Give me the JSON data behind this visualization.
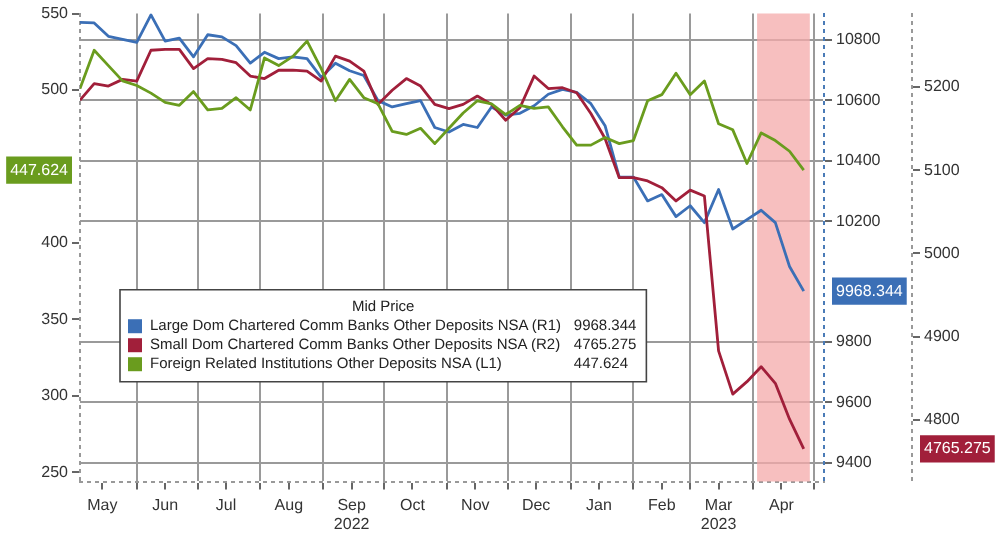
{
  "chart_data": {
    "type": "line",
    "x": [
      "2022-05-04",
      "2022-05-11",
      "2022-05-18",
      "2022-05-25",
      "2022-06-01",
      "2022-06-08",
      "2022-06-15",
      "2022-06-22",
      "2022-06-29",
      "2022-07-06",
      "2022-07-13",
      "2022-07-20",
      "2022-07-27",
      "2022-08-03",
      "2022-08-10",
      "2022-08-17",
      "2022-08-24",
      "2022-08-31",
      "2022-09-07",
      "2022-09-14",
      "2022-09-21",
      "2022-09-28",
      "2022-10-05",
      "2022-10-12",
      "2022-10-19",
      "2022-10-26",
      "2022-11-02",
      "2022-11-09",
      "2022-11-16",
      "2022-11-23",
      "2022-11-30",
      "2022-12-07",
      "2022-12-14",
      "2022-12-21",
      "2022-12-28",
      "2023-01-04",
      "2023-01-11",
      "2023-01-18",
      "2023-01-25",
      "2023-02-01",
      "2023-02-08",
      "2023-02-15",
      "2023-02-22",
      "2023-03-01",
      "2023-03-08",
      "2023-03-15",
      "2023-03-22",
      "2023-03-29",
      "2023-04-05",
      "2023-04-12",
      "2023-04-19",
      "2023-04-26"
    ],
    "series": [
      {
        "name": "Large Dom Chartered Comm Banks Other Deposits NSA (R1) 9968.344",
        "color": "#3b6fb6",
        "axis": "y2",
        "values": [
          10858,
          10856,
          10812,
          10802,
          10792,
          10883,
          10796,
          10806,
          10744,
          10817,
          10810,
          10781,
          10723,
          10759,
          10738,
          10744,
          10738,
          10676,
          10723,
          10698,
          10682,
          10599,
          10578,
          10589,
          10599,
          10510,
          10495,
          10520,
          10510,
          10578,
          10551,
          10557,
          10582,
          10620,
          10636,
          10626,
          10589,
          10516,
          10346,
          10346,
          10267,
          10288,
          10215,
          10251,
          10195,
          10305,
          10174,
          10205,
          10236,
          10195,
          10050,
          9968.344
        ]
      },
      {
        "name": "Small Dom Chartered Comm Banks Other Deposits NSA (R2) 4765.275",
        "color": "#a11f3a",
        "axis": "y3",
        "values": [
          5184,
          5204,
          5201,
          5209,
          5207,
          5244,
          5245,
          5245,
          5222,
          5234,
          5233,
          5229,
          5213,
          5210,
          5220,
          5220,
          5219,
          5207,
          5237,
          5231,
          5219,
          5179,
          5196,
          5210,
          5201,
          5179,
          5174,
          5179,
          5189,
          5179,
          5160,
          5175,
          5213,
          5198,
          5199,
          5193,
          5168,
          5138,
          5091,
          5091,
          5087,
          5079,
          5063,
          5076,
          5069,
          4883,
          4831,
          4846,
          4864,
          4844,
          4801,
          4765.275
        ]
      },
      {
        "name": "Foreign Related Institutions Other Deposits NSA (L1) 447.624",
        "color": "#6a9c1e",
        "axis": "y",
        "values": [
          501,
          526,
          516,
          506,
          503,
          498,
          492,
          490,
          499,
          487,
          488,
          495,
          487,
          521,
          516,
          522,
          532,
          514,
          493,
          507,
          495,
          491,
          473,
          471,
          475,
          465,
          475,
          485,
          493,
          491,
          484,
          490,
          488,
          489,
          476,
          464,
          464,
          469,
          465,
          467,
          493,
          497,
          511,
          497,
          506,
          478,
          474,
          452,
          472,
          467,
          460,
          447.624
        ]
      }
    ],
    "legend_title": "Mid Price",
    "legend": "left",
    "xlim": [
      "2022-05-04",
      "2023-05-06"
    ],
    "xticks": [
      {
        "value": "2022-05-15",
        "label": "May"
      },
      {
        "value": "2022-06-01",
        "label": null
      },
      {
        "value": "2022-06-15",
        "label": "Jun"
      },
      {
        "value": "2022-07-01",
        "label": null
      },
      {
        "value": "2022-07-15",
        "label": "Jul"
      },
      {
        "value": "2022-08-01",
        "label": null
      },
      {
        "value": "2022-08-15",
        "label": "Aug"
      },
      {
        "value": "2022-09-01",
        "label": null
      },
      {
        "value": "2022-09-15",
        "label": "Sep\n2022"
      },
      {
        "value": "2022-10-01",
        "label": null
      },
      {
        "value": "2022-10-15",
        "label": "Oct"
      },
      {
        "value": "2022-11-01",
        "label": null
      },
      {
        "value": "2022-11-15",
        "label": "Nov"
      },
      {
        "value": "2022-12-01",
        "label": null
      },
      {
        "value": "2022-12-15",
        "label": "Dec"
      },
      {
        "value": "2023-01-01",
        "label": null
      },
      {
        "value": "2023-01-15",
        "label": "Jan"
      },
      {
        "value": "2023-02-01",
        "label": null
      },
      {
        "value": "2023-02-15",
        "label": "Feb"
      },
      {
        "value": "2023-03-01",
        "label": null
      },
      {
        "value": "2023-03-15",
        "label": "Mar\n2023"
      },
      {
        "value": "2023-04-01",
        "label": null
      },
      {
        "value": "2023-04-15",
        "label": "Apr"
      },
      {
        "value": "2023-05-01",
        "label": null
      }
    ],
    "ylim": [
      244,
      550
    ],
    "yticks": [
      250,
      300,
      350,
      400,
      {
        "value": 447.624,
        "label": "447.624"
      },
      500,
      550
    ],
    "y2lim": [
      9338,
      10887
    ],
    "y2ticks": [
      9400,
      9600,
      9800,
      {
        "value": 9968.344,
        "label": "9968.344"
      },
      10200,
      10400,
      10600,
      10800
    ],
    "y3lim": [
      4726,
      5288
    ],
    "y3ticks": [
      {
        "value": 4765.275,
        "label": "4765.275"
      },
      4800,
      4900,
      5000,
      5100,
      5200
    ],
    "bands": [
      {
        "axis": "x",
        "from": "2023-04-03",
        "to": "2023-04-29",
        "color": "#f4a9a9"
      }
    ],
    "grid": true,
    "line_style": "solid",
    "marker": "none"
  }
}
